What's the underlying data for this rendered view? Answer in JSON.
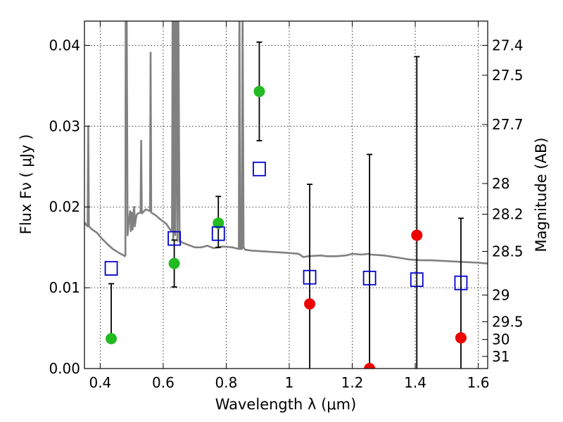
{
  "chart_data": {
    "type": "scatter",
    "xlabel": "Wavelength  λ (μm)",
    "ylabel": "Flux  Fν  ( μJy )",
    "ylabel_right": "Magnitude (AB)",
    "xlim": [
      0.35,
      1.63
    ],
    "ylim": [
      0.0,
      0.043
    ],
    "x_ticks": [
      0.4,
      0.6,
      0.8,
      1.0,
      1.2,
      1.4,
      1.6
    ],
    "x_tick_labels": [
      "0.4",
      "0.6",
      "0.8",
      "1",
      "1.2",
      "1.4",
      "1.6"
    ],
    "y_ticks": [
      0.0,
      0.01,
      0.02,
      0.03,
      0.04
    ],
    "y_tick_labels": [
      "0.00",
      "0.01",
      "0.02",
      "0.03",
      "0.04"
    ],
    "right_ticks": [
      {
        "flux": 0.04,
        "label": "27.4"
      },
      {
        "flux": 0.0363,
        "label": "27.5"
      },
      {
        "flux": 0.0302,
        "label": "27.7"
      },
      {
        "flux": 0.0229,
        "label": "28"
      },
      {
        "flux": 0.0191,
        "label": "28.2"
      },
      {
        "flux": 0.0145,
        "label": "28.5"
      },
      {
        "flux": 0.0091,
        "label": "29"
      },
      {
        "flux": 0.0058,
        "label": "29.5"
      },
      {
        "flux": 0.0036,
        "label": "30"
      },
      {
        "flux": 0.0015,
        "label": "31"
      }
    ],
    "grid": true,
    "series": [
      {
        "marker": "circle",
        "color": "#22bb22",
        "points": [
          {
            "x": 0.435,
            "y": 0.0037,
            "err_low": 0.0037,
            "err_high": 0.0105
          },
          {
            "x": 0.635,
            "y": 0.013,
            "err_low": 0.0101,
            "err_high": 0.0159
          },
          {
            "x": 0.775,
            "y": 0.018,
            "err_low": 0.015,
            "err_high": 0.0213
          },
          {
            "x": 0.905,
            "y": 0.0343,
            "err_low": 0.0282,
            "err_high": 0.0404
          }
        ]
      },
      {
        "marker": "circle",
        "color": "#ee0000",
        "points": [
          {
            "x": 1.065,
            "y": 0.008,
            "err_low": 0.0,
            "err_high": 0.0228
          },
          {
            "x": 1.255,
            "y": 0.0,
            "err_low": 0.0,
            "err_high": 0.0265
          },
          {
            "x": 1.405,
            "y": 0.0165,
            "err_low": 0.0,
            "err_high": 0.0386
          },
          {
            "x": 1.545,
            "y": 0.0038,
            "err_low": 0.0,
            "err_high": 0.0186
          }
        ]
      },
      {
        "marker": "open-square",
        "color": "#0000cc",
        "points": [
          {
            "x": 0.435,
            "y": 0.0124
          },
          {
            "x": 0.635,
            "y": 0.0161
          },
          {
            "x": 0.775,
            "y": 0.0167
          },
          {
            "x": 0.905,
            "y": 0.0247
          },
          {
            "x": 1.065,
            "y": 0.0113
          },
          {
            "x": 1.255,
            "y": 0.0112
          },
          {
            "x": 1.405,
            "y": 0.011
          },
          {
            "x": 1.545,
            "y": 0.0106
          }
        ]
      }
    ],
    "model_spectrum": {
      "color": "#808080",
      "points": [
        [
          0.35,
          0.0181
        ],
        [
          0.355,
          0.0178
        ],
        [
          0.36,
          0.0176
        ],
        [
          0.362,
          0.03
        ],
        [
          0.364,
          0.0176
        ],
        [
          0.375,
          0.0172
        ],
        [
          0.39,
          0.0168
        ],
        [
          0.405,
          0.0161
        ],
        [
          0.42,
          0.0155
        ],
        [
          0.44,
          0.0148
        ],
        [
          0.46,
          0.0143
        ],
        [
          0.475,
          0.014
        ],
        [
          0.478,
          0.0139
        ],
        [
          0.48,
          0.014
        ],
        [
          0.481,
          0.045
        ],
        [
          0.484,
          0.045
        ],
        [
          0.487,
          0.0165
        ],
        [
          0.49,
          0.018
        ],
        [
          0.495,
          0.0195
        ],
        [
          0.497,
          0.017
        ],
        [
          0.5,
          0.0193
        ],
        [
          0.503,
          0.0172
        ],
        [
          0.505,
          0.019
        ],
        [
          0.508,
          0.02
        ],
        [
          0.51,
          0.0176
        ],
        [
          0.515,
          0.019
        ],
        [
          0.52,
          0.0192
        ],
        [
          0.528,
          0.0193
        ],
        [
          0.53,
          0.0282
        ],
        [
          0.532,
          0.0192
        ],
        [
          0.545,
          0.0197
        ],
        [
          0.558,
          0.0195
        ],
        [
          0.56,
          0.0391
        ],
        [
          0.562,
          0.0193
        ],
        [
          0.575,
          0.019
        ],
        [
          0.59,
          0.0185
        ],
        [
          0.6,
          0.0182
        ],
        [
          0.61,
          0.0179
        ],
        [
          0.62,
          0.0173
        ],
        [
          0.628,
          0.017
        ],
        [
          0.63,
          0.045
        ],
        [
          0.632,
          0.016
        ],
        [
          0.636,
          0.045
        ],
        [
          0.638,
          0.0165
        ],
        [
          0.642,
          0.045
        ],
        [
          0.645,
          0.0158
        ],
        [
          0.648,
          0.045
        ],
        [
          0.652,
          0.0158
        ],
        [
          0.66,
          0.0156
        ],
        [
          0.68,
          0.0153
        ],
        [
          0.7,
          0.015
        ],
        [
          0.72,
          0.015
        ],
        [
          0.74,
          0.0152
        ],
        [
          0.76,
          0.0149
        ],
        [
          0.79,
          0.0151
        ],
        [
          0.82,
          0.015
        ],
        [
          0.84,
          0.0148
        ],
        [
          0.842,
          0.045
        ],
        [
          0.845,
          0.0148
        ],
        [
          0.85,
          0.0148
        ],
        [
          0.852,
          0.045
        ],
        [
          0.855,
          0.015
        ],
        [
          0.86,
          0.0147
        ],
        [
          0.88,
          0.0146
        ],
        [
          0.92,
          0.0145
        ],
        [
          0.96,
          0.0144
        ],
        [
          1.0,
          0.0143
        ],
        [
          1.03,
          0.0142
        ],
        [
          1.045,
          0.0138
        ],
        [
          1.06,
          0.0139
        ],
        [
          1.1,
          0.014
        ],
        [
          1.12,
          0.0139
        ],
        [
          1.15,
          0.0139
        ],
        [
          1.18,
          0.014
        ],
        [
          1.2,
          0.0142
        ],
        [
          1.23,
          0.0141
        ],
        [
          1.25,
          0.0142
        ],
        [
          1.26,
          0.0141
        ],
        [
          1.3,
          0.014
        ],
        [
          1.35,
          0.0137
        ],
        [
          1.38,
          0.0135
        ],
        [
          1.42,
          0.0134
        ],
        [
          1.45,
          0.0134
        ],
        [
          1.5,
          0.0133
        ],
        [
          1.55,
          0.0132
        ],
        [
          1.6,
          0.0131
        ],
        [
          1.63,
          0.013
        ]
      ]
    }
  }
}
